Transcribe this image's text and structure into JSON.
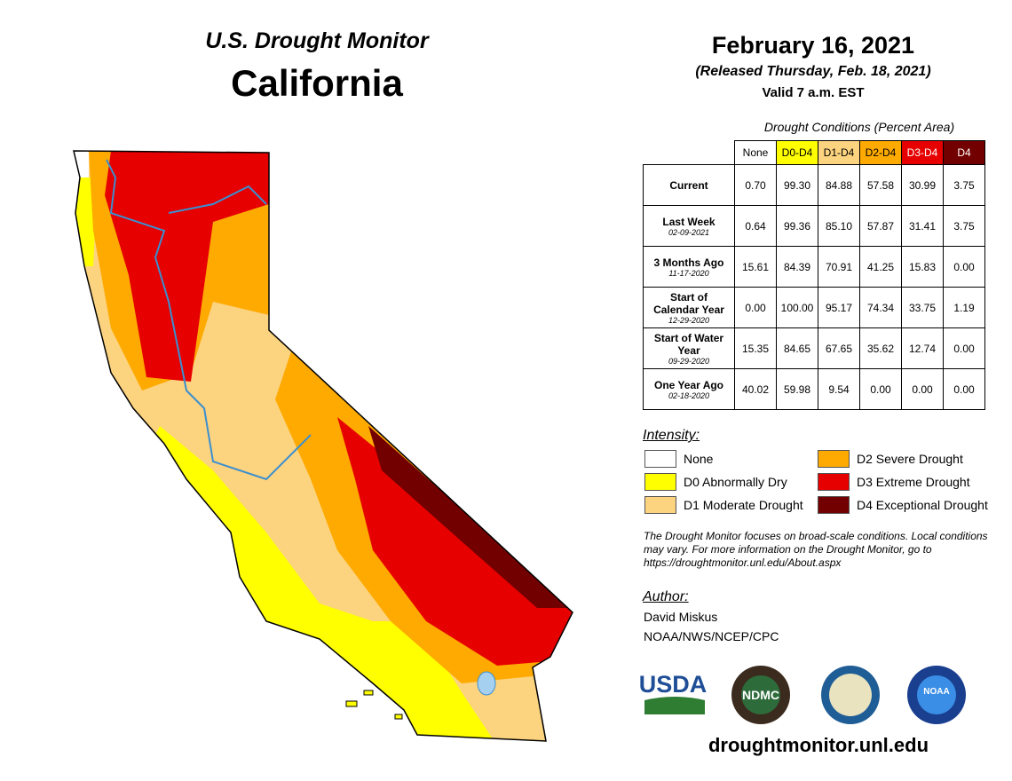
{
  "header": {
    "program": "U.S. Drought Monitor",
    "region": "California",
    "date": "February 16, 2021",
    "released": "(Released Thursday, Feb. 18, 2021)",
    "valid": "Valid 7 a.m. EST"
  },
  "table": {
    "caption": "Drought Conditions (Percent Area)",
    "columns": [
      {
        "label": "None",
        "color": "#ffffff",
        "text": "#000000"
      },
      {
        "label": "D0-D4",
        "color": "#ffff00",
        "text": "#000000"
      },
      {
        "label": "D1-D4",
        "color": "#fcd37f",
        "text": "#000000"
      },
      {
        "label": "D2-D4",
        "color": "#ffaa00",
        "text": "#000000"
      },
      {
        "label": "D3-D4",
        "color": "#e60000",
        "text": "#ffffff"
      },
      {
        "label": "D4",
        "color": "#730000",
        "text": "#ffffff"
      }
    ],
    "rows": [
      {
        "label": "Current",
        "values": [
          "0.70",
          "99.30",
          "84.88",
          "57.58",
          "30.99",
          "3.75"
        ]
      },
      {
        "label": "Last Week",
        "date": "02-09-2021",
        "values": [
          "0.64",
          "99.36",
          "85.10",
          "57.87",
          "31.41",
          "3.75"
        ]
      },
      {
        "label": "3 Months Ago",
        "date": "11-17-2020",
        "values": [
          "15.61",
          "84.39",
          "70.91",
          "41.25",
          "15.83",
          "0.00"
        ]
      },
      {
        "label": "Start of Calendar Year",
        "date": "12-29-2020",
        "values": [
          "0.00",
          "100.00",
          "95.17",
          "74.34",
          "33.75",
          "1.19"
        ]
      },
      {
        "label": "Start of Water Year",
        "date": "09-29-2020",
        "values": [
          "15.35",
          "84.65",
          "67.65",
          "35.62",
          "12.74",
          "0.00"
        ]
      },
      {
        "label": "One Year Ago",
        "date": "02-18-2020",
        "values": [
          "40.02",
          "59.98",
          "9.54",
          "0.00",
          "0.00",
          "0.00"
        ]
      }
    ]
  },
  "legend": {
    "title": "Intensity:",
    "items": [
      {
        "label": "None",
        "color": "#ffffff"
      },
      {
        "label": "D2 Severe Drought",
        "color": "#ffaa00"
      },
      {
        "label": "D0 Abnormally Dry",
        "color": "#ffff00"
      },
      {
        "label": "D3 Extreme Drought",
        "color": "#e60000"
      },
      {
        "label": "D1 Moderate Drought",
        "color": "#fcd37f"
      },
      {
        "label": "D4 Exceptional Drought",
        "color": "#730000"
      }
    ]
  },
  "note": "The Drought Monitor focuses on broad-scale conditions. Local conditions may vary. For more information on the Drought Monitor, go to https://droughtmonitor.unl.edu/About.aspx",
  "author": {
    "title": "Author:",
    "name": "David Miskus",
    "org": "NOAA/NWS/NCEP/CPC"
  },
  "logos": [
    "USDA",
    "NDMC",
    "NOAA"
  ],
  "footer": "droughtmonitor.unl.edu"
}
